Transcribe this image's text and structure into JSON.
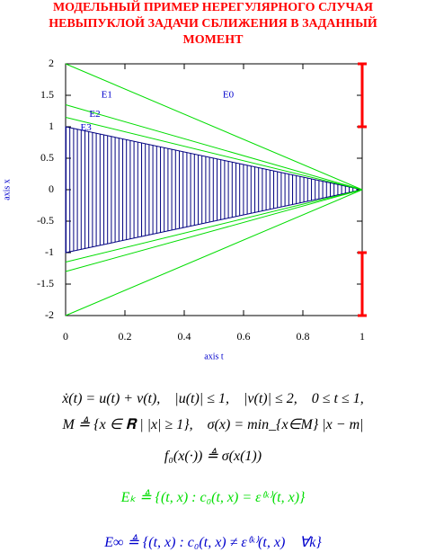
{
  "chart_data": {
    "type": "line",
    "title_lines": [
      "МОДЕЛЬНЫЙ ПРИМЕР НЕРЕГУЛЯРНОГО СЛУЧАЯ",
      "НЕВЫПУКЛОЙ ЗАДАЧИ СБЛИЖЕНИЯ В ЗАДАННЫЙ",
      "МОМЕНТ"
    ],
    "title_color": "#ff0000",
    "xlabel": "axis t",
    "ylabel": "axis x",
    "label_color": "#0000cc",
    "xlim": [
      0,
      1
    ],
    "ylim": [
      -2,
      2
    ],
    "xticks": [
      0,
      0.2,
      0.4,
      0.6,
      0.8,
      1
    ],
    "yticks": [
      2,
      1.5,
      1,
      0.5,
      0,
      -0.5,
      -1,
      -1.5,
      -2
    ],
    "line_color": "#00dd00",
    "series": [
      {
        "x": [
          0,
          1
        ],
        "values": [
          2,
          0
        ]
      },
      {
        "x": [
          0,
          1
        ],
        "values": [
          1.35,
          0
        ]
      },
      {
        "x": [
          0,
          1
        ],
        "values": [
          1.15,
          0
        ]
      },
      {
        "x": [
          0,
          1
        ],
        "values": [
          -1.15,
          0
        ]
      },
      {
        "x": [
          0,
          1
        ],
        "values": [
          -1.3,
          0
        ]
      },
      {
        "x": [
          0,
          1
        ],
        "values": [
          -2,
          0
        ]
      }
    ],
    "region": {
      "color": "#000080",
      "x": [
        0,
        1
      ],
      "upper": [
        1,
        0
      ],
      "lower": [
        -1,
        0
      ]
    },
    "red_segments": {
      "color": "#ff0000",
      "x": 1,
      "ranges": [
        [
          1,
          2
        ],
        [
          -2,
          -1
        ]
      ]
    },
    "annotations": [
      {
        "text": "E1",
        "x": 0.12,
        "y": 1.5
      },
      {
        "text": "E0",
        "x": 0.53,
        "y": 1.5
      },
      {
        "text": "E2",
        "x": 0.08,
        "y": 1.19
      },
      {
        "text": "E3",
        "x": 0.05,
        "y": 0.98
      }
    ]
  },
  "formulas": [
    {
      "text": "ẋ(t) = u(t) + v(t),    |u(t)| ≤ 1,    |v(t)| ≤ 2,    0 ≤ t ≤ 1,",
      "color": "#000000"
    },
    {
      "text": "M ≜ {x ∈ 𝐑 | |x| ≥ 1},    σ(x) = min_{x∈M} |x − m|",
      "color": "#000000"
    },
    {
      "text": "f₀(x(·)) ≜ σ(x(1))",
      "color": "#000000"
    },
    {
      "text": "Eₖ ≜ {(t, x) : c₀(t, x) = ε⁽ᵏ⁾(t, x)}",
      "color": "#00dd00"
    },
    {
      "text": "E∞ ≜ {(t, x) : c₀(t, x) ≠ ε⁽ᵏ⁾(t, x)    ∀k}",
      "color": "#0000cc"
    }
  ]
}
